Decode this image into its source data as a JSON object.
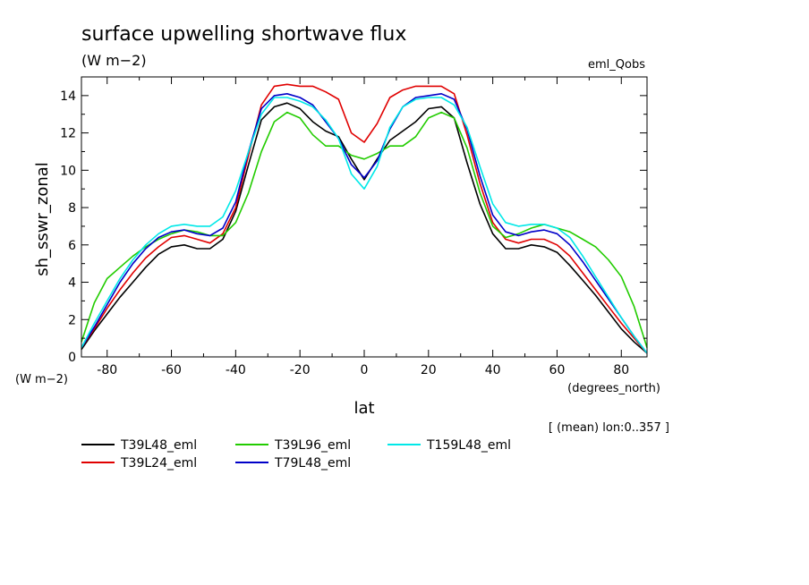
{
  "chart_data": {
    "type": "line",
    "title": "surface upwelling shortwave flux",
    "units": "(W m−2)",
    "experiment": "eml_Qobs",
    "xlabel": "lat",
    "xunits": "(degrees_north)",
    "ylabel": "sh_sswr_zonal",
    "yunits": "(W m−2)",
    "footnote": "[ (mean) lon:0..357 ]",
    "xlim": [
      -88,
      88
    ],
    "ylim": [
      0,
      15
    ],
    "xticks": [
      -80,
      -60,
      -40,
      -20,
      0,
      20,
      40,
      60,
      80
    ],
    "yticks": [
      0,
      2,
      4,
      6,
      8,
      10,
      12,
      14
    ],
    "series": [
      {
        "name": "T39L48_eml",
        "color": "#000000",
        "x": [
          -88,
          -84,
          -80,
          -76,
          -72,
          -68,
          -64,
          -60,
          -56,
          -52,
          -48,
          -44,
          -40,
          -36,
          -32,
          -28,
          -24,
          -20,
          -16,
          -12,
          -8,
          -4,
          0,
          4,
          8,
          12,
          16,
          20,
          24,
          28,
          32,
          36,
          40,
          44,
          48,
          52,
          56,
          60,
          64,
          68,
          72,
          76,
          80,
          84,
          88
        ],
        "y": [
          0.4,
          1.4,
          2.3,
          3.2,
          4.0,
          4.8,
          5.5,
          5.9,
          6.0,
          5.8,
          5.8,
          6.3,
          7.8,
          10.3,
          12.7,
          13.4,
          13.6,
          13.3,
          12.6,
          12.1,
          11.8,
          10.6,
          9.5,
          10.6,
          11.6,
          12.1,
          12.6,
          13.3,
          13.4,
          12.8,
          10.4,
          8.2,
          6.6,
          5.8,
          5.8,
          6.0,
          5.9,
          5.6,
          4.9,
          4.1,
          3.3,
          2.4,
          1.5,
          0.8,
          0.2
        ]
      },
      {
        "name": "T39L24_eml",
        "color": "#e00000",
        "x": [
          -88,
          -84,
          -80,
          -76,
          -72,
          -68,
          -64,
          -60,
          -56,
          -52,
          -48,
          -44,
          -40,
          -36,
          -32,
          -28,
          -24,
          -20,
          -16,
          -12,
          -8,
          -4,
          0,
          4,
          8,
          12,
          16,
          20,
          24,
          28,
          32,
          36,
          40,
          44,
          48,
          52,
          56,
          60,
          64,
          68,
          72,
          76,
          80,
          84,
          88
        ],
        "y": [
          0.5,
          1.5,
          2.6,
          3.6,
          4.5,
          5.3,
          5.9,
          6.4,
          6.5,
          6.3,
          6.1,
          6.6,
          8.0,
          10.8,
          13.5,
          14.5,
          14.6,
          14.5,
          14.5,
          14.2,
          13.8,
          12.0,
          11.5,
          12.5,
          13.9,
          14.3,
          14.5,
          14.5,
          14.5,
          14.1,
          11.9,
          9.3,
          7.2,
          6.3,
          6.1,
          6.3,
          6.3,
          6.0,
          5.4,
          4.5,
          3.6,
          2.7,
          1.8,
          1.0,
          0.2
        ]
      },
      {
        "name": "T39L96_eml",
        "color": "#22cc00",
        "x": [
          -88,
          -84,
          -80,
          -76,
          -72,
          -68,
          -64,
          -60,
          -56,
          -52,
          -48,
          -44,
          -40,
          -36,
          -32,
          -28,
          -24,
          -20,
          -16,
          -12,
          -8,
          -4,
          0,
          4,
          8,
          12,
          16,
          20,
          24,
          28,
          32,
          36,
          40,
          44,
          48,
          52,
          56,
          60,
          64,
          68,
          72,
          76,
          80,
          84,
          88
        ],
        "y": [
          0.8,
          2.9,
          4.2,
          4.8,
          5.4,
          5.9,
          6.3,
          6.6,
          6.8,
          6.7,
          6.5,
          6.5,
          7.2,
          8.8,
          11.0,
          12.6,
          13.1,
          12.8,
          11.9,
          11.3,
          11.3,
          10.8,
          10.6,
          10.9,
          11.3,
          11.3,
          11.8,
          12.8,
          13.1,
          12.8,
          11.2,
          8.8,
          7.0,
          6.4,
          6.6,
          6.9,
          7.1,
          6.9,
          6.7,
          6.3,
          5.9,
          5.2,
          4.3,
          2.7,
          0.5
        ]
      },
      {
        "name": "T79L48_eml",
        "color": "#0000c8",
        "x": [
          -88,
          -84,
          -80,
          -76,
          -72,
          -68,
          -64,
          -60,
          -56,
          -52,
          -48,
          -44,
          -40,
          -36,
          -32,
          -28,
          -24,
          -20,
          -16,
          -12,
          -8,
          -4,
          0,
          4,
          8,
          12,
          16,
          20,
          24,
          28,
          32,
          36,
          40,
          44,
          48,
          52,
          56,
          60,
          64,
          68,
          72,
          76,
          80,
          84,
          88
        ],
        "y": [
          0.5,
          1.6,
          2.8,
          4.0,
          5.0,
          5.8,
          6.4,
          6.7,
          6.8,
          6.6,
          6.5,
          6.9,
          8.3,
          11.0,
          13.3,
          14.0,
          14.1,
          13.9,
          13.5,
          12.6,
          11.7,
          10.3,
          9.6,
          10.5,
          12.2,
          13.4,
          13.9,
          14.0,
          14.1,
          13.8,
          12.2,
          9.7,
          7.6,
          6.7,
          6.5,
          6.7,
          6.8,
          6.6,
          6.0,
          5.1,
          4.1,
          3.1,
          2.1,
          1.1,
          0.2
        ]
      },
      {
        "name": "T159L48_eml",
        "color": "#00e8e8",
        "x": [
          -88,
          -84,
          -80,
          -76,
          -72,
          -68,
          -64,
          -60,
          -56,
          -52,
          -48,
          -44,
          -40,
          -36,
          -32,
          -28,
          -24,
          -20,
          -16,
          -12,
          -8,
          -4,
          0,
          4,
          8,
          12,
          16,
          20,
          24,
          28,
          32,
          36,
          40,
          44,
          48,
          52,
          56,
          60,
          64,
          68,
          72,
          76,
          80,
          84,
          88
        ],
        "y": [
          0.5,
          1.8,
          3.0,
          4.2,
          5.2,
          6.0,
          6.6,
          7.0,
          7.1,
          7.0,
          7.0,
          7.5,
          8.9,
          11.0,
          13.0,
          13.9,
          13.9,
          13.7,
          13.4,
          12.7,
          11.7,
          9.8,
          9.0,
          10.2,
          12.3,
          13.4,
          13.8,
          13.9,
          13.9,
          13.5,
          12.3,
          10.2,
          8.2,
          7.2,
          7.0,
          7.1,
          7.1,
          6.9,
          6.4,
          5.4,
          4.3,
          3.2,
          2.1,
          1.1,
          0.2
        ]
      }
    ]
  }
}
